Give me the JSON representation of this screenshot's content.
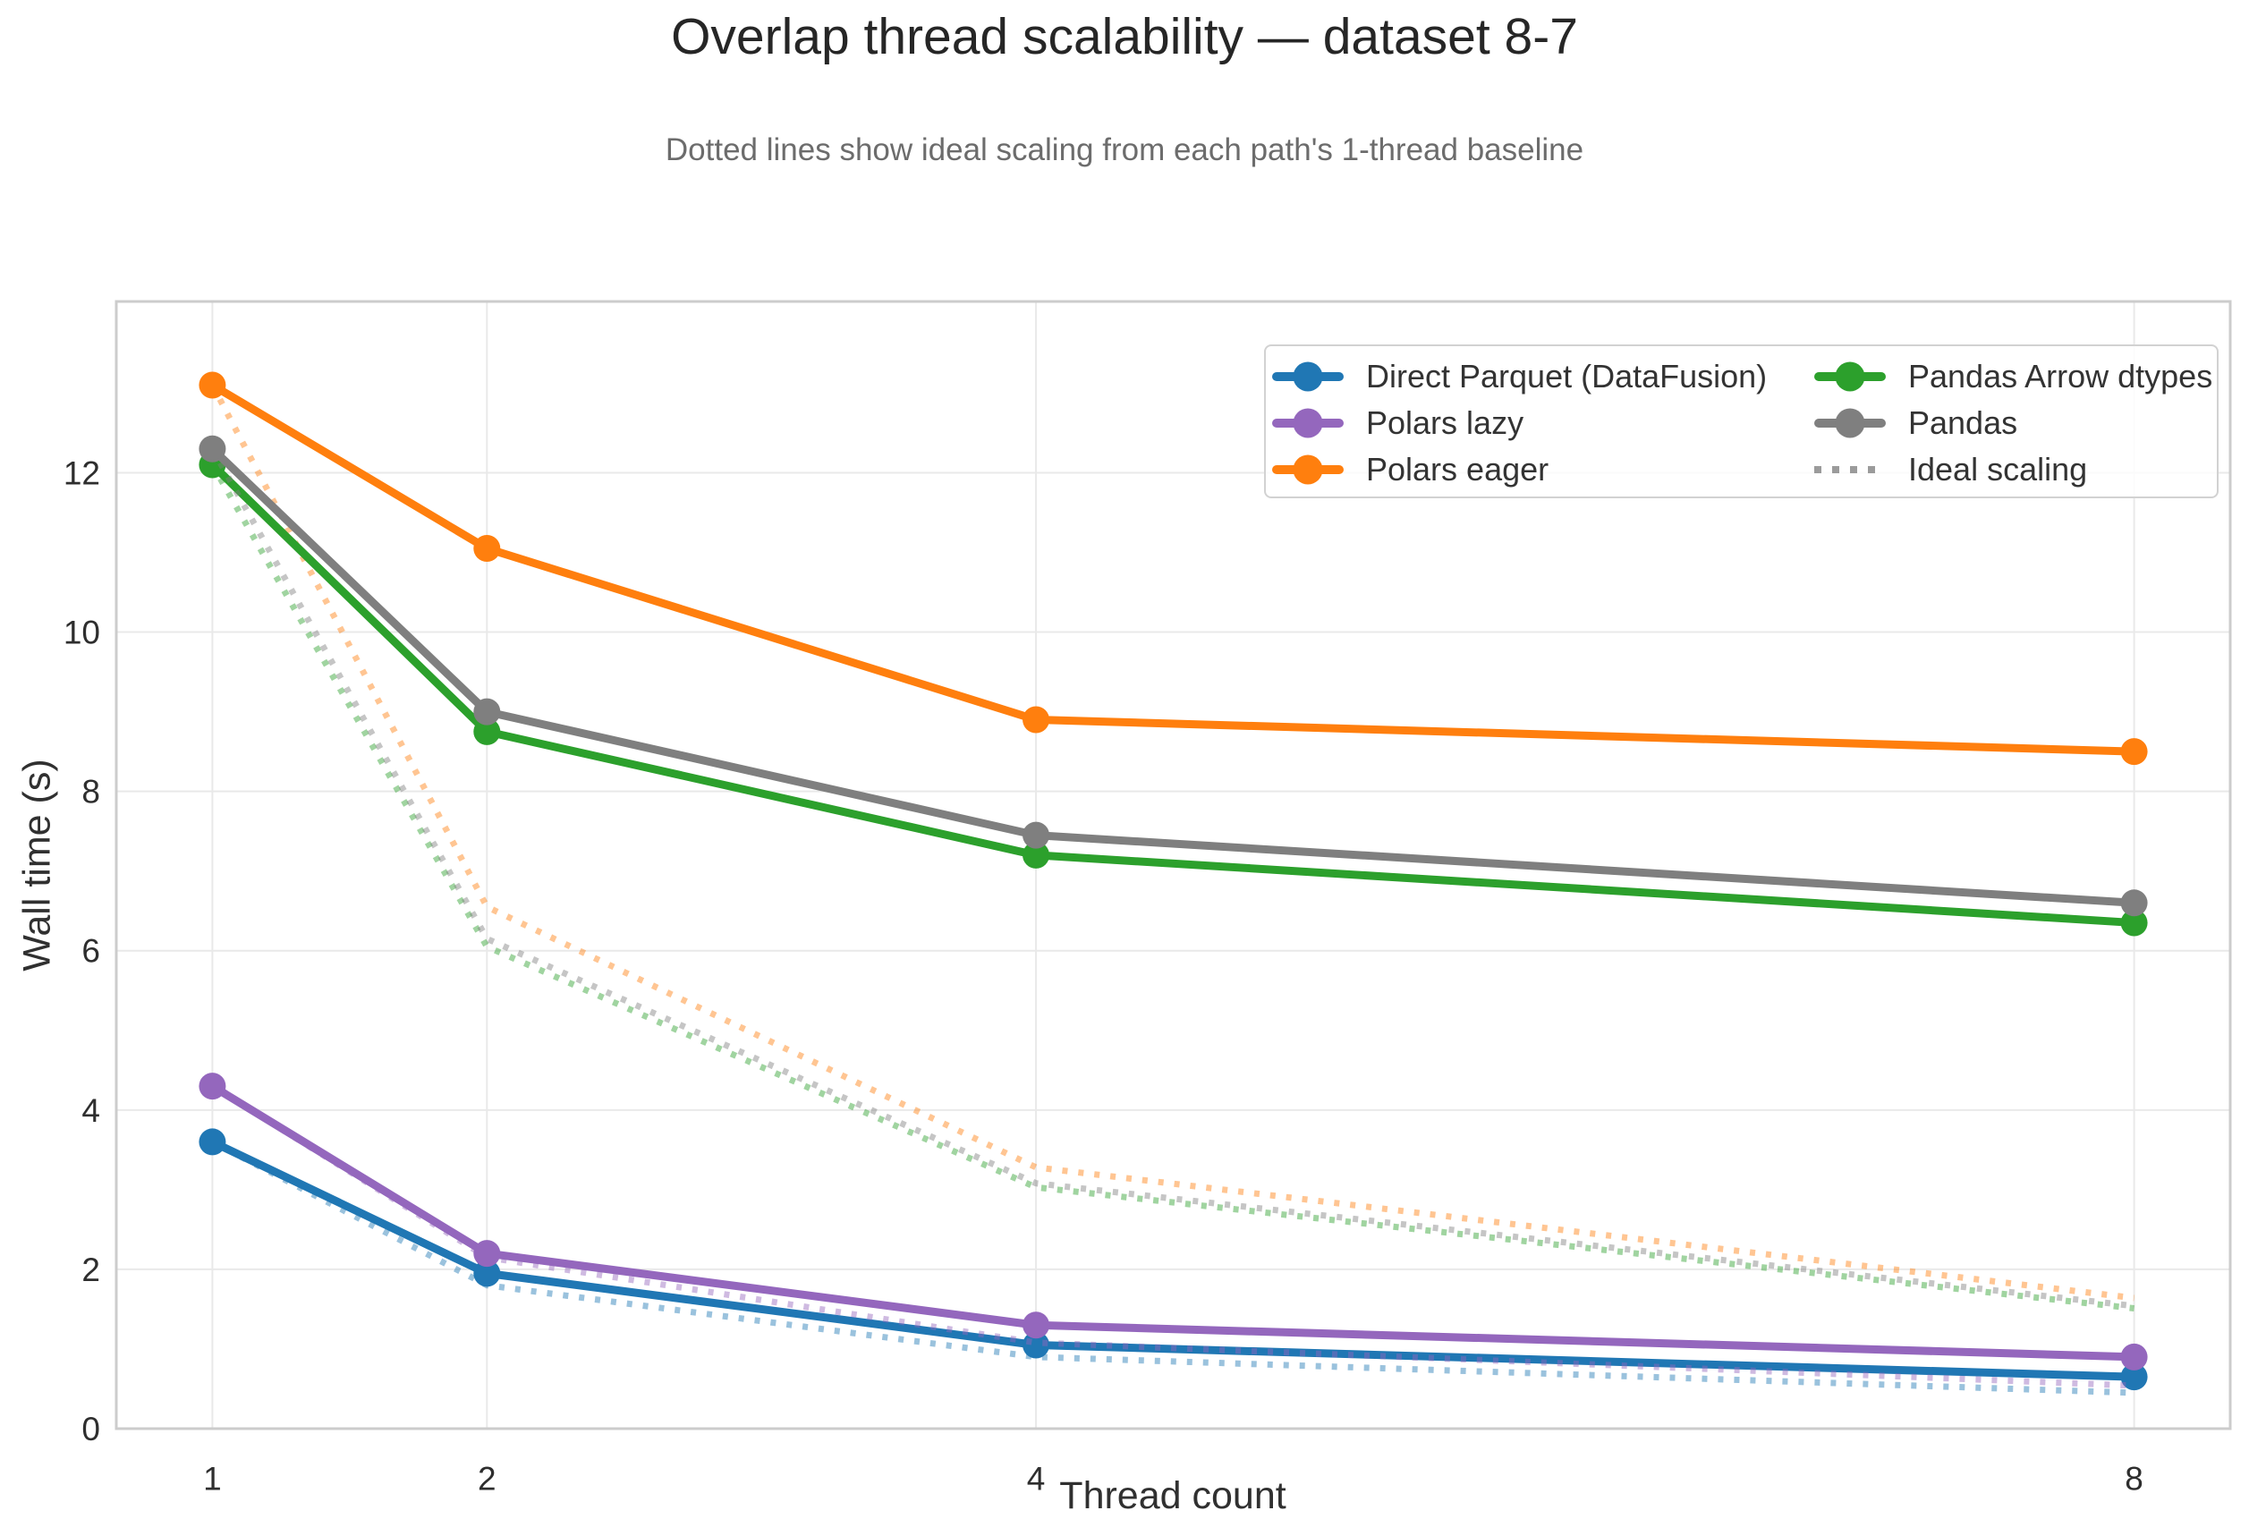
{
  "title": "Overlap thread scalability — dataset 8-7",
  "subtitle": "Dotted lines show ideal scaling from each path's 1-thread baseline",
  "chart_data": {
    "type": "line",
    "x": [
      1,
      2,
      4,
      8
    ],
    "xlabel": "Thread count",
    "ylabel": "Wall time (s)",
    "xticks": [
      "1",
      "2",
      "4",
      "8"
    ],
    "yticks": [
      "0",
      "2",
      "4",
      "6",
      "8",
      "10",
      "12"
    ],
    "ytick_values": [
      0,
      2,
      4,
      6,
      8,
      10,
      12
    ],
    "xlim": [
      0.65,
      8.35
    ],
    "ylim": [
      0,
      14.15
    ],
    "x_scale": "linear",
    "grid": true,
    "legend_position": "upper right, 2 columns",
    "series": [
      {
        "name": "Direct Parquet (DataFusion)",
        "color": "#2077b4",
        "values": [
          3.6,
          1.95,
          1.05,
          0.65
        ],
        "ideal": [
          3.6,
          1.8,
          0.9,
          0.45
        ]
      },
      {
        "name": "Polars lazy",
        "color": "#9467bd",
        "values": [
          4.3,
          2.2,
          1.3,
          0.9
        ],
        "ideal": [
          4.3,
          2.15,
          1.08,
          0.54
        ]
      },
      {
        "name": "Polars eager",
        "color": "#ff7f0e",
        "values": [
          13.1,
          11.05,
          8.9,
          8.5
        ],
        "ideal": [
          13.1,
          6.55,
          3.28,
          1.64
        ]
      },
      {
        "name": "Pandas Arrow dtypes",
        "color": "#2ca02c",
        "values": [
          12.1,
          8.75,
          7.2,
          6.35
        ],
        "ideal": [
          12.1,
          6.05,
          3.03,
          1.51
        ]
      },
      {
        "name": "Pandas",
        "color": "#7f7f7f",
        "values": [
          12.3,
          9.0,
          7.45,
          6.6
        ],
        "ideal": [
          12.3,
          6.15,
          3.08,
          1.54
        ]
      }
    ],
    "ideal_legend_label": "Ideal scaling",
    "ideal_legend_color": "#9b9b9b",
    "grid_color": "#e9e9e9",
    "border_color": "#cccccc",
    "tick_color": "#2e2e2e"
  }
}
